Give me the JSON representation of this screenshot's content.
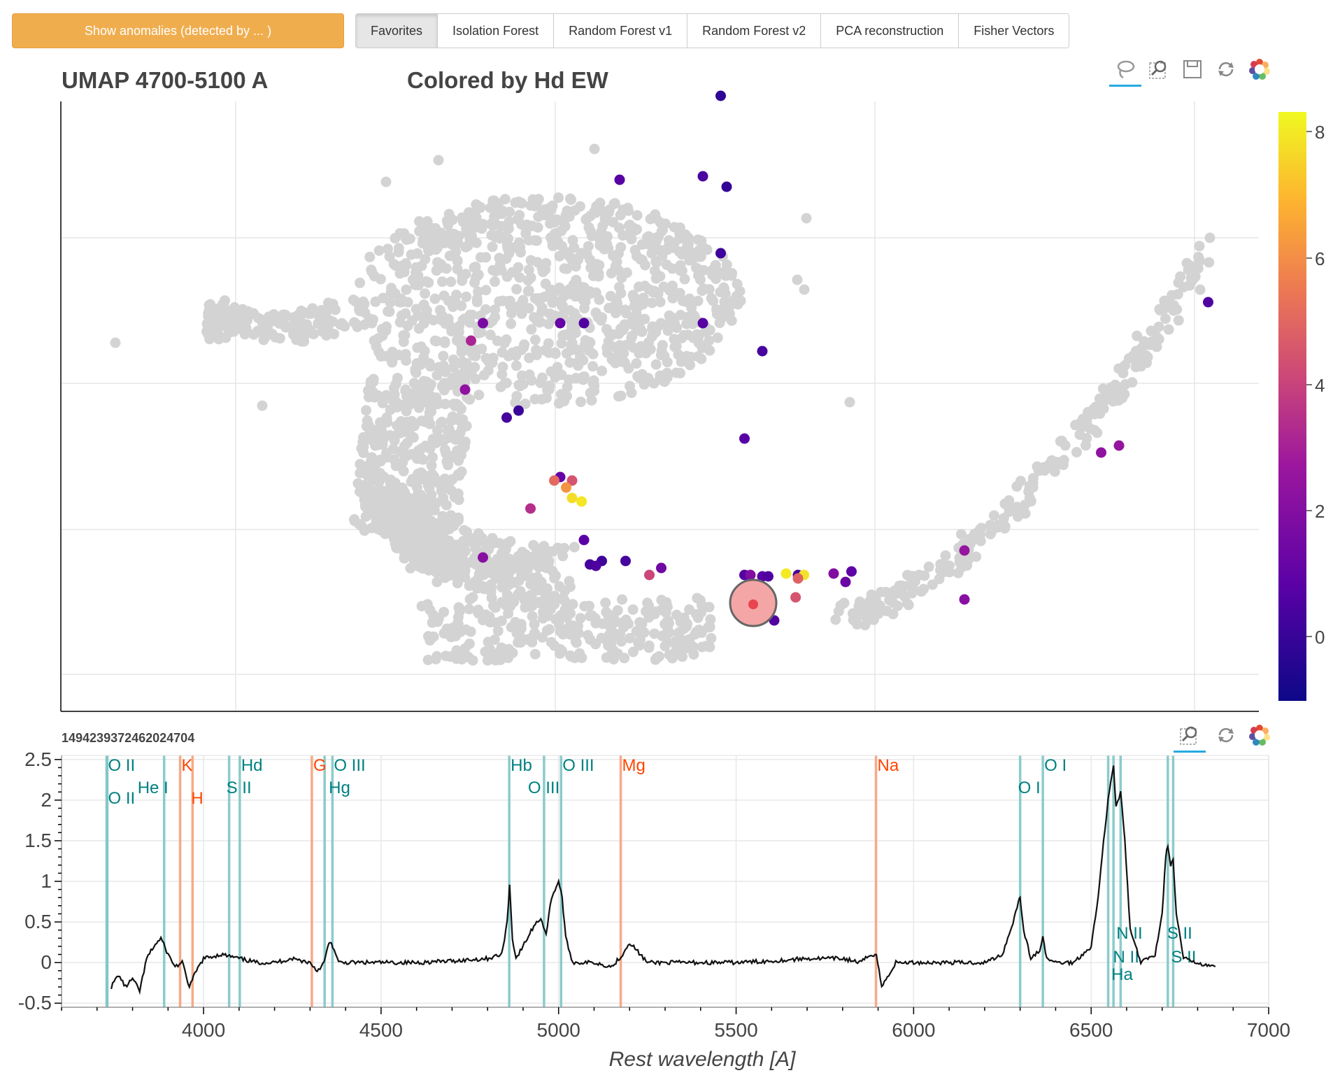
{
  "toolbar": {
    "anomaly_button": "Show anomalies (detected by ... )",
    "tabs": [
      "Favorites",
      "Isolation Forest",
      "Random Forest v1",
      "Random Forest v2",
      "PCA reconstruction",
      "Fisher Vectors"
    ],
    "active_tab": "Favorites"
  },
  "scatter": {
    "title": "UMAP 4700-5100 A",
    "color_title": "Colored by Hd EW",
    "tools_top": [
      "lasso-select-icon",
      "box-zoom-icon",
      "save-icon",
      "reset-icon",
      "bokeh-logo-icon"
    ],
    "colorbar": {
      "ticks": [
        "8",
        "6",
        "4",
        "2",
        "0"
      ],
      "min": -1,
      "max": 8.5
    },
    "background_color": "#d3d3d3",
    "highlight_color": "#f08080"
  },
  "spectrum": {
    "object_id": "1494239372462024704",
    "tools": [
      "box-zoom-icon",
      "reset-icon",
      "bokeh-logo-icon"
    ],
    "xlabel": "Rest wavelength [A]",
    "x_ticks": [
      "4000",
      "4500",
      "5000",
      "5500",
      "6000",
      "6500",
      "7000"
    ],
    "y_ticks": [
      "2.5",
      "2",
      "1.5",
      "1",
      "0.5",
      "0",
      "-0.5"
    ],
    "xlim": [
      3600,
      7000
    ],
    "ylim": [
      -0.55,
      2.55
    ],
    "emission_color": "#008080",
    "absorption_color": "#ff4500",
    "lines": [
      {
        "label": "O II",
        "wavelength": 3727,
        "type": "emission"
      },
      {
        "label": "O II",
        "wavelength": 3729,
        "type": "emission"
      },
      {
        "label": "He I",
        "wavelength": 3889,
        "type": "emission"
      },
      {
        "label": "K",
        "wavelength": 3934,
        "type": "absorption"
      },
      {
        "label": "H",
        "wavelength": 3969,
        "type": "absorption"
      },
      {
        "label": "S II",
        "wavelength": 4072,
        "type": "emission"
      },
      {
        "label": "Hd",
        "wavelength": 4102,
        "type": "emission"
      },
      {
        "label": "G",
        "wavelength": 4305,
        "type": "absorption"
      },
      {
        "label": "Hg",
        "wavelength": 4341,
        "type": "emission"
      },
      {
        "label": "O III",
        "wavelength": 4363,
        "type": "emission"
      },
      {
        "label": "Hb",
        "wavelength": 4861,
        "type": "emission"
      },
      {
        "label": "O III",
        "wavelength": 4959,
        "type": "emission"
      },
      {
        "label": "O III",
        "wavelength": 5007,
        "type": "emission"
      },
      {
        "label": "Mg",
        "wavelength": 5175,
        "type": "absorption"
      },
      {
        "label": "Na",
        "wavelength": 5894,
        "type": "absorption"
      },
      {
        "label": "O I",
        "wavelength": 6300,
        "type": "emission"
      },
      {
        "label": "O I",
        "wavelength": 6364,
        "type": "emission"
      },
      {
        "label": "N II",
        "wavelength": 6548,
        "type": "emission"
      },
      {
        "label": "Ha",
        "wavelength": 6563,
        "type": "emission"
      },
      {
        "label": "N II",
        "wavelength": 6583,
        "type": "emission"
      },
      {
        "label": "S II",
        "wavelength": 6716,
        "type": "emission"
      },
      {
        "label": "S II",
        "wavelength": 6731,
        "type": "emission"
      }
    ]
  },
  "chart_data": [
    {
      "type": "scatter",
      "title": "UMAP 4700-5100 A",
      "subtitle": "Colored by Hd EW",
      "xlabel": "",
      "ylabel": "",
      "grid": true,
      "colorbar_range": [
        -1,
        8.5
      ],
      "colored_points": [
        {
          "x": 5.55,
          "y": 8.8,
          "c": -0.2
        },
        {
          "x": 4.7,
          "y": 7.6,
          "c": 0.8
        },
        {
          "x": 5.4,
          "y": 7.65,
          "c": 0.5
        },
        {
          "x": 5.6,
          "y": 7.5,
          "c": -0.1
        },
        {
          "x": 5.55,
          "y": 6.55,
          "c": 0.2
        },
        {
          "x": 4.2,
          "y": 5.55,
          "c": 1.2
        },
        {
          "x": 4.4,
          "y": 5.55,
          "c": 0.6
        },
        {
          "x": 5.4,
          "y": 5.55,
          "c": 0.8
        },
        {
          "x": 3.55,
          "y": 5.55,
          "c": 1.8
        },
        {
          "x": 3.45,
          "y": 5.3,
          "c": 3.2
        },
        {
          "x": 3.4,
          "y": 4.6,
          "c": 2.4
        },
        {
          "x": 3.85,
          "y": 4.3,
          "c": 0.1
        },
        {
          "x": 3.75,
          "y": 4.2,
          "c": 0.4
        },
        {
          "x": 5.75,
          "y": 3.9,
          "c": 0.8
        },
        {
          "x": 4.2,
          "y": 3.35,
          "c": 1.2
        },
        {
          "x": 4.15,
          "y": 3.3,
          "c": 5.2
        },
        {
          "x": 4.3,
          "y": 3.3,
          "c": 4.6
        },
        {
          "x": 4.25,
          "y": 3.2,
          "c": 6.3
        },
        {
          "x": 4.3,
          "y": 3.05,
          "c": 7.9
        },
        {
          "x": 4.38,
          "y": 3.0,
          "c": 8.1
        },
        {
          "x": 3.95,
          "y": 2.9,
          "c": 3.5
        },
        {
          "x": 4.4,
          "y": 2.45,
          "c": 0.9
        },
        {
          "x": 3.55,
          "y": 2.2,
          "c": 2.2
        },
        {
          "x": 4.45,
          "y": 2.1,
          "c": 0.3
        },
        {
          "x": 4.55,
          "y": 2.15,
          "c": 0.2
        },
        {
          "x": 4.75,
          "y": 2.15,
          "c": 0.4
        },
        {
          "x": 4.5,
          "y": 2.08,
          "c": 0.6
        },
        {
          "x": 5.05,
          "y": 2.05,
          "c": 1.5
        },
        {
          "x": 4.95,
          "y": 1.95,
          "c": 4.2
        },
        {
          "x": 5.75,
          "y": 1.95,
          "c": 0.7
        },
        {
          "x": 5.8,
          "y": 1.95,
          "c": 2.0
        },
        {
          "x": 5.9,
          "y": 1.93,
          "c": 0.8
        },
        {
          "x": 5.95,
          "y": 1.93,
          "c": 0.6
        },
        {
          "x": 6.1,
          "y": 1.97,
          "c": 8.2
        },
        {
          "x": 6.2,
          "y": 1.95,
          "c": 0.3
        },
        {
          "x": 6.25,
          "y": 1.95,
          "c": 8.0
        },
        {
          "x": 6.2,
          "y": 1.9,
          "c": 5.0
        },
        {
          "x": 6.18,
          "y": 1.63,
          "c": 4.6
        },
        {
          "x": 6.5,
          "y": 1.97,
          "c": 2.0
        },
        {
          "x": 6.65,
          "y": 2.0,
          "c": 1.0
        },
        {
          "x": 6.6,
          "y": 1.85,
          "c": 1.3
        },
        {
          "x": 6.0,
          "y": 1.3,
          "c": 0.6
        },
        {
          "x": 7.6,
          "y": 2.3,
          "c": 2.6
        },
        {
          "x": 7.6,
          "y": 1.6,
          "c": 2.2
        },
        {
          "x": 8.75,
          "y": 3.7,
          "c": 2.4
        },
        {
          "x": 8.9,
          "y": 3.8,
          "c": 2.6
        },
        {
          "x": 9.65,
          "y": 5.85,
          "c": 0.6
        },
        {
          "x": 5.9,
          "y": 5.15,
          "c": 0.4
        }
      ]
    },
    {
      "type": "line",
      "title": "1494239372462024704",
      "xlabel": "Rest wavelength [A]",
      "ylabel": "",
      "xlim": [
        3600,
        7000
      ],
      "ylim": [
        -0.55,
        2.55
      ],
      "x": [
        3740,
        3760,
        3780,
        3800,
        3820,
        3840,
        3860,
        3880,
        3900,
        3920,
        3940,
        3960,
        3980,
        4000,
        4050,
        4100,
        4150,
        4200,
        4250,
        4300,
        4320,
        4340,
        4350,
        4360,
        4380,
        4400,
        4500,
        4600,
        4700,
        4800,
        4840,
        4855,
        4862,
        4870,
        4880,
        4900,
        4930,
        4950,
        4965,
        4980,
        4990,
        5000,
        5010,
        5020,
        5040,
        5100,
        5150,
        5180,
        5200,
        5250,
        5300,
        5400,
        5500,
        5600,
        5700,
        5800,
        5850,
        5880,
        5895,
        5910,
        5950,
        6000,
        6100,
        6200,
        6250,
        6280,
        6295,
        6300,
        6310,
        6330,
        6355,
        6364,
        6375,
        6400,
        6450,
        6500,
        6520,
        6535,
        6548,
        6555,
        6563,
        6570,
        6583,
        6595,
        6610,
        6640,
        6680,
        6700,
        6710,
        6716,
        6724,
        6731,
        6740,
        6760,
        6800,
        6850
      ],
      "y": [
        -0.3,
        -0.15,
        -0.3,
        -0.2,
        -0.35,
        0.05,
        0.2,
        0.3,
        0.1,
        -0.05,
        0.0,
        -0.3,
        -0.1,
        0.05,
        0.1,
        0.05,
        0.0,
        0.0,
        0.05,
        0.0,
        -0.1,
        0.0,
        0.2,
        0.25,
        0.0,
        0.0,
        0.0,
        0.0,
        0.02,
        0.05,
        0.1,
        0.5,
        0.95,
        0.3,
        0.05,
        0.2,
        0.45,
        0.55,
        0.35,
        0.8,
        0.9,
        1.0,
        0.8,
        0.3,
        0.0,
        0.0,
        -0.05,
        0.1,
        0.25,
        0.0,
        0.0,
        0.0,
        0.0,
        0.02,
        0.05,
        0.05,
        0.0,
        0.1,
        0.1,
        -0.3,
        0.0,
        0.0,
        0.0,
        0.0,
        0.1,
        0.5,
        0.75,
        0.8,
        0.4,
        0.05,
        0.15,
        0.3,
        0.05,
        0.0,
        0.0,
        0.2,
        0.8,
        1.5,
        2.0,
        2.2,
        2.45,
        1.9,
        2.1,
        1.5,
        0.4,
        0.0,
        0.1,
        0.6,
        1.3,
        1.45,
        1.2,
        1.25,
        0.6,
        0.05,
        0.0,
        -0.05
      ]
    }
  ]
}
